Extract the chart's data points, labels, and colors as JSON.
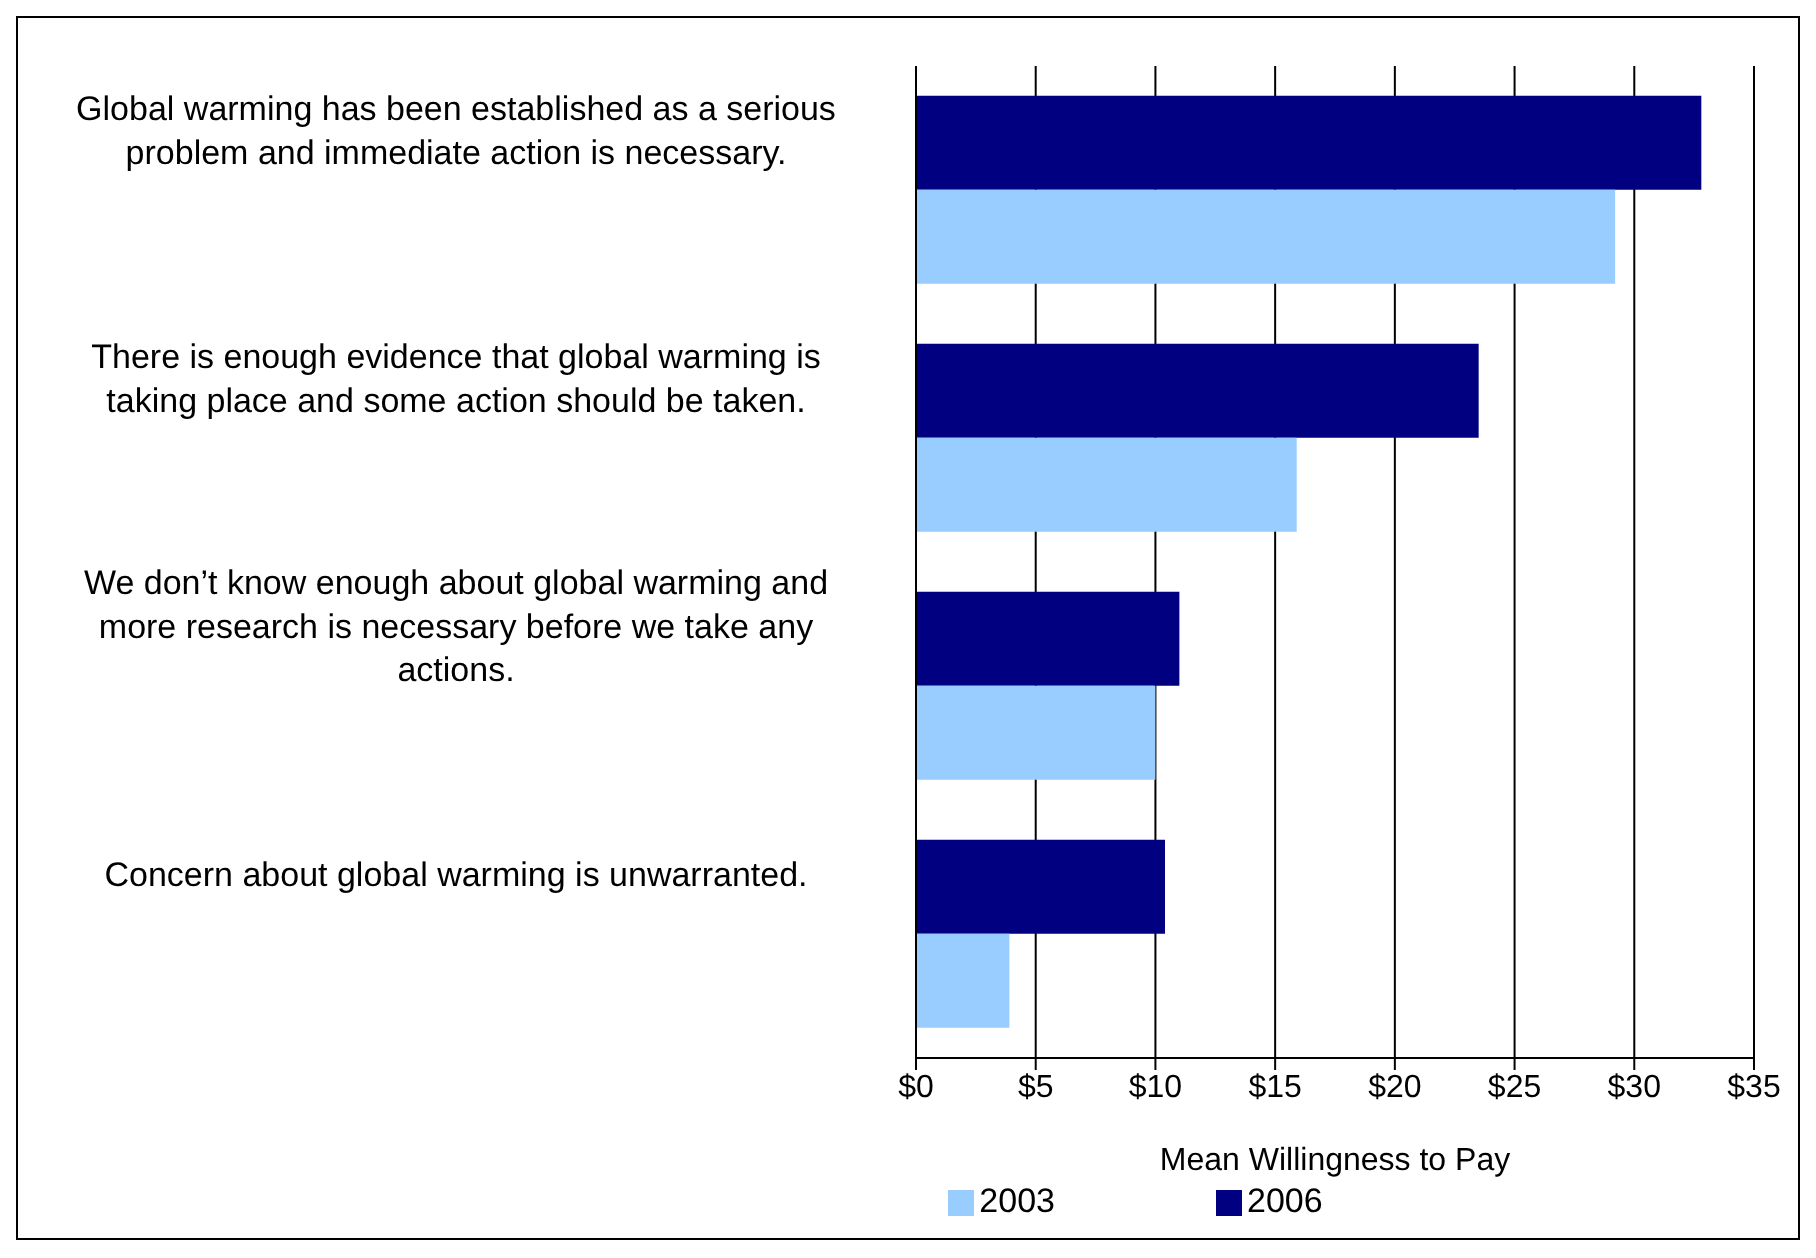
{
  "chart_data": {
    "type": "bar",
    "orientation": "horizontal",
    "xlabel": "Mean Willingness to Pay",
    "categories": [
      "Global warming has been established as a serious problem and immediate action is necessary.",
      "There is enough evidence that global warming is taking place and some action should be taken.",
      "We don’t know enough about global warming and more research is necessary before we take any actions.",
      "Concern about global warming is unwarranted."
    ],
    "series": [
      {
        "name": "2003",
        "color": "#99ccff",
        "values": [
          29.2,
          15.9,
          10.0,
          3.9
        ]
      },
      {
        "name": "2006",
        "color": "#000080",
        "values": [
          32.8,
          23.5,
          11.0,
          10.4
        ]
      }
    ],
    "xlim": [
      0,
      35
    ],
    "xticks": [
      {
        "value": 0,
        "label": "$0"
      },
      {
        "value": 5,
        "label": "$5"
      },
      {
        "value": 10,
        "label": "$10"
      },
      {
        "value": 15,
        "label": "$15"
      },
      {
        "value": 20,
        "label": "$20"
      },
      {
        "value": 25,
        "label": "$25"
      },
      {
        "value": 30,
        "label": "$30"
      },
      {
        "value": 35,
        "label": "$35"
      }
    ],
    "grid": "x",
    "legend": "bottom"
  }
}
